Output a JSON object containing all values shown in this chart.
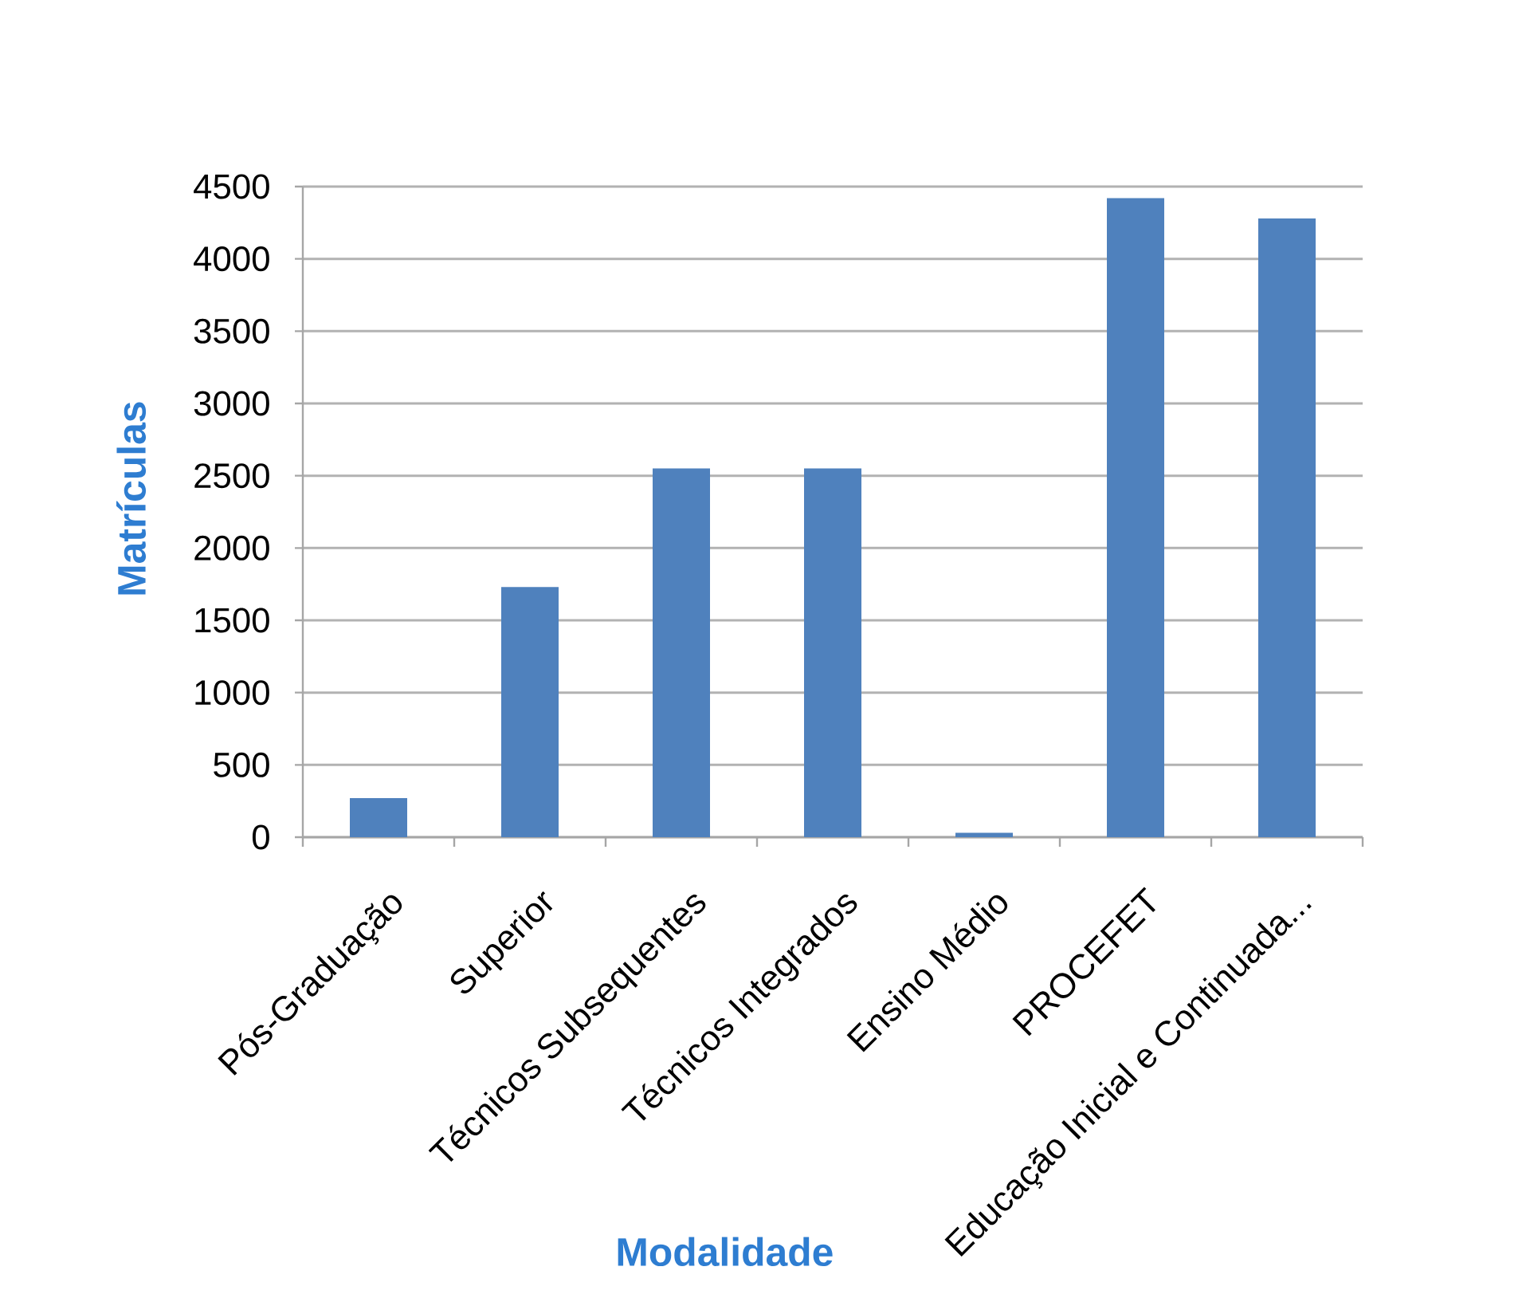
{
  "chart_data": {
    "type": "bar",
    "xlabel": "Modalidade",
    "ylabel": "Matrículas",
    "categories": [
      "Pós-Graduação",
      "Superior",
      "Técnicos Subsequentes",
      "Técnicos Integrados",
      "Ensino Médio",
      "PROCEFET",
      "Educação Inicial e Continuada..."
    ],
    "values": [
      270,
      1730,
      2550,
      2550,
      30,
      4420,
      4280
    ],
    "color": "#4f81bd",
    "ylim": [
      0,
      4500
    ],
    "yticks": [
      0,
      500,
      1000,
      1500,
      2000,
      2500,
      3000,
      3500,
      4000,
      4500
    ],
    "grid": "y"
  }
}
